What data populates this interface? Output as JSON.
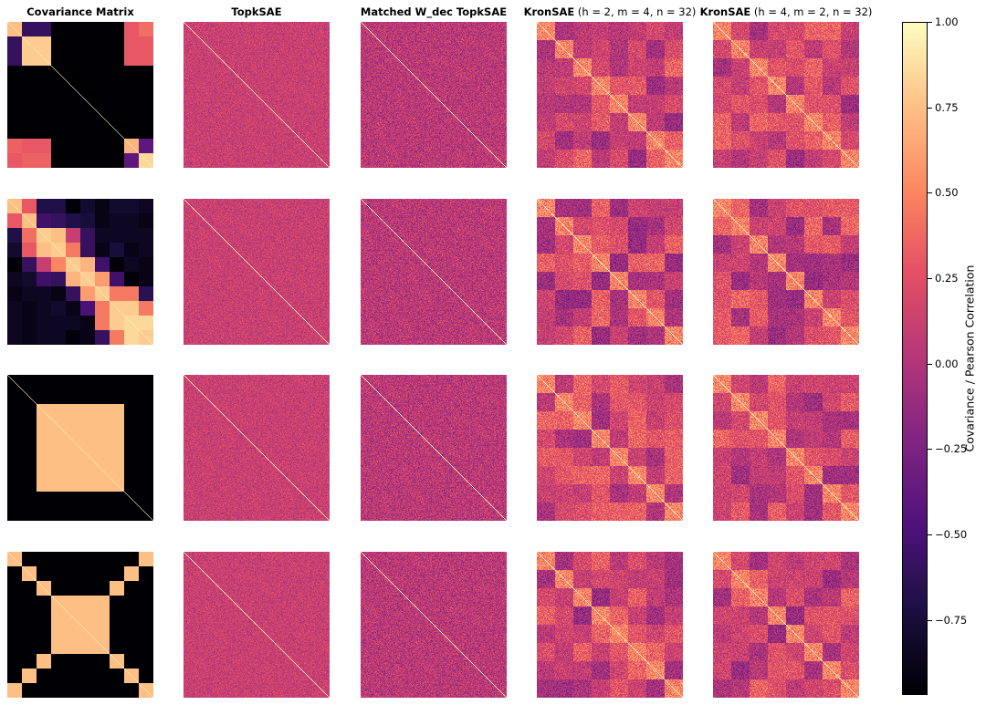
{
  "chart_data": {
    "type": "heatmap",
    "columns": [
      {
        "key": "cov",
        "title_bold": "Covariance Matrix",
        "title_params": ""
      },
      {
        "key": "topk",
        "title_bold": "TopkSAE",
        "title_params": ""
      },
      {
        "key": "matched",
        "title_bold": "Matched W_dec TopkSAE",
        "title_params": ""
      },
      {
        "key": "kron_a",
        "title_bold": "KronSAE",
        "title_params": "(h = 2,  m = 4,  n = 32)"
      },
      {
        "key": "kron_b",
        "title_bold": "KronSAE",
        "title_params": "(h = 4,  m = 2,  n = 32)"
      }
    ],
    "rows": [
      {
        "covariance": [
          [
            0.75,
            -0.6,
            -0.6,
            -1,
            -1,
            -1,
            -1,
            -1,
            0.3,
            0.4
          ],
          [
            -0.6,
            0.8,
            0.8,
            -1,
            -1,
            -1,
            -1,
            -1,
            0.3,
            0.3
          ],
          [
            -0.6,
            0.8,
            0.8,
            -1,
            -1,
            -1,
            -1,
            -1,
            0.3,
            0.3
          ],
          [
            -1,
            -1,
            -1,
            -1,
            -1,
            -1,
            -1,
            -1,
            -1,
            -1
          ],
          [
            -1,
            -1,
            -1,
            -1,
            -1,
            -1,
            -1,
            -1,
            -1,
            -1
          ],
          [
            -1,
            -1,
            -1,
            -1,
            -1,
            -1,
            -1,
            -1,
            -1,
            -1
          ],
          [
            -1,
            -1,
            -1,
            -1,
            -1,
            -1,
            -1,
            -1,
            -1,
            -1
          ],
          [
            -1,
            -1,
            -1,
            -1,
            -1,
            -1,
            -1,
            -1,
            -1,
            -1
          ],
          [
            0.35,
            0.3,
            0.3,
            -1,
            -1,
            -1,
            -1,
            -1,
            0.7,
            -0.4
          ],
          [
            0.3,
            0.35,
            0.35,
            -1,
            -1,
            -1,
            -1,
            -1,
            -0.4,
            0.85
          ]
        ]
      },
      {
        "covariance": [
          [
            0.75,
            0.3,
            -0.7,
            -0.7,
            -0.95,
            -0.8,
            -0.9,
            -0.8,
            -0.8,
            -0.85
          ],
          [
            0.3,
            0.75,
            -0.55,
            -0.6,
            -0.7,
            -0.75,
            -0.9,
            -0.85,
            -0.85,
            -0.9
          ],
          [
            -0.7,
            0.4,
            0.8,
            0.75,
            0.1,
            -0.6,
            -0.85,
            -0.85,
            -0.85,
            -0.85
          ],
          [
            -0.8,
            0.3,
            0.75,
            0.8,
            0.45,
            -0.6,
            -0.9,
            -0.75,
            -0.9,
            -0.85
          ],
          [
            -0.95,
            -0.6,
            0.1,
            0.5,
            0.8,
            0.7,
            -0.55,
            -0.95,
            -0.85,
            -0.9
          ],
          [
            -0.85,
            -0.8,
            -0.55,
            -0.6,
            0.7,
            0.8,
            0.6,
            -0.55,
            -0.95,
            -0.9
          ],
          [
            -0.9,
            -0.85,
            -0.85,
            -0.9,
            -0.6,
            0.6,
            0.8,
            0.45,
            0.45,
            -0.65
          ],
          [
            -0.85,
            -0.9,
            -0.85,
            -0.8,
            -0.9,
            -0.5,
            0.45,
            0.8,
            0.8,
            0.45
          ],
          [
            -0.85,
            -0.9,
            -0.85,
            -0.85,
            -0.85,
            -0.9,
            0.45,
            0.8,
            0.85,
            0.85
          ],
          [
            -0.85,
            -0.9,
            -0.85,
            -0.85,
            -0.95,
            -0.9,
            -0.6,
            0.45,
            0.85,
            0.8
          ]
        ]
      },
      {
        "covariance": [
          [
            -1,
            -1,
            -1,
            -1,
            -1,
            -1,
            -1,
            -1,
            -1,
            -1
          ],
          [
            -1,
            -1,
            -1,
            -1,
            -1,
            -1,
            -1,
            -1,
            -1,
            -1
          ],
          [
            -1,
            -1,
            0.75,
            0.75,
            0.75,
            0.75,
            0.75,
            0.75,
            -1,
            -1
          ],
          [
            -1,
            -1,
            0.75,
            0.75,
            0.75,
            0.75,
            0.75,
            0.75,
            -1,
            -1
          ],
          [
            -1,
            -1,
            0.75,
            0.75,
            0.75,
            0.75,
            0.75,
            0.75,
            -1,
            -1
          ],
          [
            -1,
            -1,
            0.75,
            0.75,
            0.75,
            0.75,
            0.75,
            0.75,
            -1,
            -1
          ],
          [
            -1,
            -1,
            0.75,
            0.75,
            0.75,
            0.75,
            0.75,
            0.75,
            -1,
            -1
          ],
          [
            -1,
            -1,
            0.75,
            0.75,
            0.75,
            0.75,
            0.75,
            0.75,
            -1,
            -1
          ],
          [
            -1,
            -1,
            -1,
            -1,
            -1,
            -1,
            -1,
            -1,
            -1,
            -1
          ],
          [
            -1,
            -1,
            -1,
            -1,
            -1,
            -1,
            -1,
            -1,
            -1,
            -1
          ]
        ]
      },
      {
        "covariance": [
          [
            0.75,
            -1,
            -1,
            -1,
            -1,
            -1,
            -1,
            -1,
            -1,
            0.75
          ],
          [
            -1,
            0.75,
            -1,
            -1,
            -1,
            -1,
            -1,
            -1,
            0.75,
            -1
          ],
          [
            -1,
            -1,
            0.75,
            -1,
            -1,
            -1,
            -1,
            0.75,
            -1,
            -1
          ],
          [
            -1,
            -1,
            -1,
            0.75,
            0.75,
            0.75,
            0.75,
            -1,
            -1,
            -1
          ],
          [
            -1,
            -1,
            -1,
            0.75,
            0.75,
            0.75,
            0.75,
            -1,
            -1,
            -1
          ],
          [
            -1,
            -1,
            -1,
            0.75,
            0.75,
            0.75,
            0.75,
            -1,
            -1,
            -1
          ],
          [
            -1,
            -1,
            -1,
            0.75,
            0.75,
            0.75,
            0.75,
            -1,
            -1,
            -1
          ],
          [
            -1,
            -1,
            0.75,
            -1,
            -1,
            -1,
            -1,
            0.75,
            -1,
            -1
          ],
          [
            -1,
            0.75,
            -1,
            -1,
            -1,
            -1,
            -1,
            -1,
            0.75,
            -1
          ],
          [
            0.75,
            -1,
            -1,
            -1,
            -1,
            -1,
            -1,
            -1,
            -1,
            0.75
          ]
        ]
      }
    ],
    "colorbar": {
      "label": "Covariance / Pearson Correlation",
      "colormap": "magma",
      "vmin": -0.97,
      "vmax": 1.0,
      "ticks": [
        1.0,
        0.75,
        0.5,
        0.25,
        0.0,
        -0.25,
        -0.5,
        -0.75
      ],
      "tick_labels": [
        "1.00",
        "0.75",
        "0.50",
        "0.25",
        "0.00",
        "−0.25",
        "−0.50",
        "−0.75"
      ]
    }
  }
}
